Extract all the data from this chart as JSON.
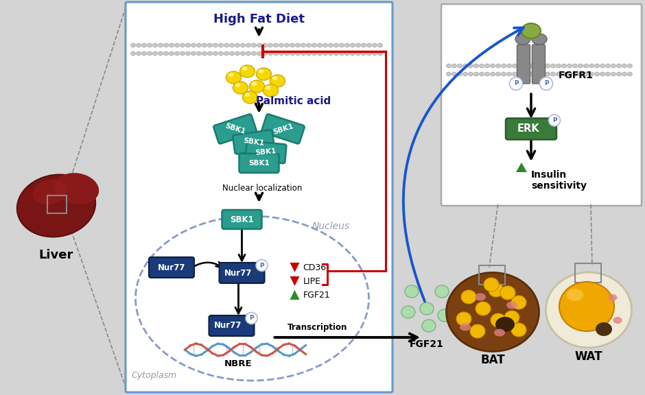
{
  "bg_color": "#d4d4d4",
  "main_panel_color": "#ffffff",
  "main_panel_border": "#6699cc",
  "right_panel_color": "#ffffff",
  "right_panel_border": "#aaaaaa",
  "teal": "#2a9d8f",
  "dark_teal": "#1a7a70",
  "navy": "#1a3a7a",
  "dark_navy": "#0d2040",
  "red_color": "#cc0000",
  "blue_color": "#1a55cc",
  "green_color": "#2a8a2a",
  "erk_green": "#3a7a3a",
  "title": "High Fat Diet",
  "palmitic_text": "Palmitic acid",
  "nuclear_text": "Nuclear localization",
  "nucleus_text": "Nucleus",
  "cytoplasm_text": "Cytoplasm",
  "nbre_text": "NBRE",
  "transcription_text": "Transcription",
  "fgfr1_text": "FGFR1",
  "erk_text": "ERK",
  "insulin_text": "Insulin\nsensitivity",
  "bat_text": "BAT",
  "wat_text": "WAT",
  "fgf21_text": "FGF21",
  "liver_text": "Liver",
  "cd36_text": "CD36",
  "lipe_text": "LIPE",
  "fgf21_label": "FGF21",
  "p_text": "P"
}
